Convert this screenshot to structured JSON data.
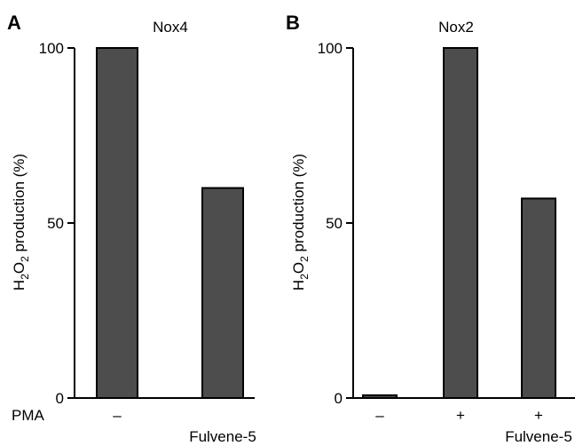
{
  "chart_data": [
    {
      "type": "bar",
      "panel": "A",
      "title": "Nox4",
      "ylabel_main": "H",
      "ylabel_sub1": "2",
      "ylabel_mid": "O",
      "ylabel_sub2": "2",
      "ylabel_rest": " production (%)",
      "ylim": [
        0,
        100
      ],
      "yticks": [
        "0",
        "50",
        "100"
      ],
      "row_labels": {
        "pma": "PMA",
        "fulvene": "Fulvene-5"
      },
      "categories": [
        {
          "pma": "–",
          "fulvene": ""
        },
        {
          "pma": "",
          "fulvene": "Fulvene-5"
        }
      ],
      "values": [
        100,
        60
      ],
      "bar_color": "#4d4d4d"
    },
    {
      "type": "bar",
      "panel": "B",
      "title": "Nox2",
      "ylabel_main": "H",
      "ylabel_sub1": "2",
      "ylabel_mid": "O",
      "ylabel_sub2": "2",
      "ylabel_rest": " production (%)",
      "ylim": [
        0,
        100
      ],
      "yticks": [
        "0",
        "50",
        "100"
      ],
      "categories": [
        {
          "pma": "–",
          "fulvene": ""
        },
        {
          "pma": "+",
          "fulvene": ""
        },
        {
          "pma": "+",
          "fulvene": "Fulvene-5"
        }
      ],
      "values": [
        0.8,
        100,
        57
      ],
      "bar_color": "#4d4d4d"
    }
  ]
}
